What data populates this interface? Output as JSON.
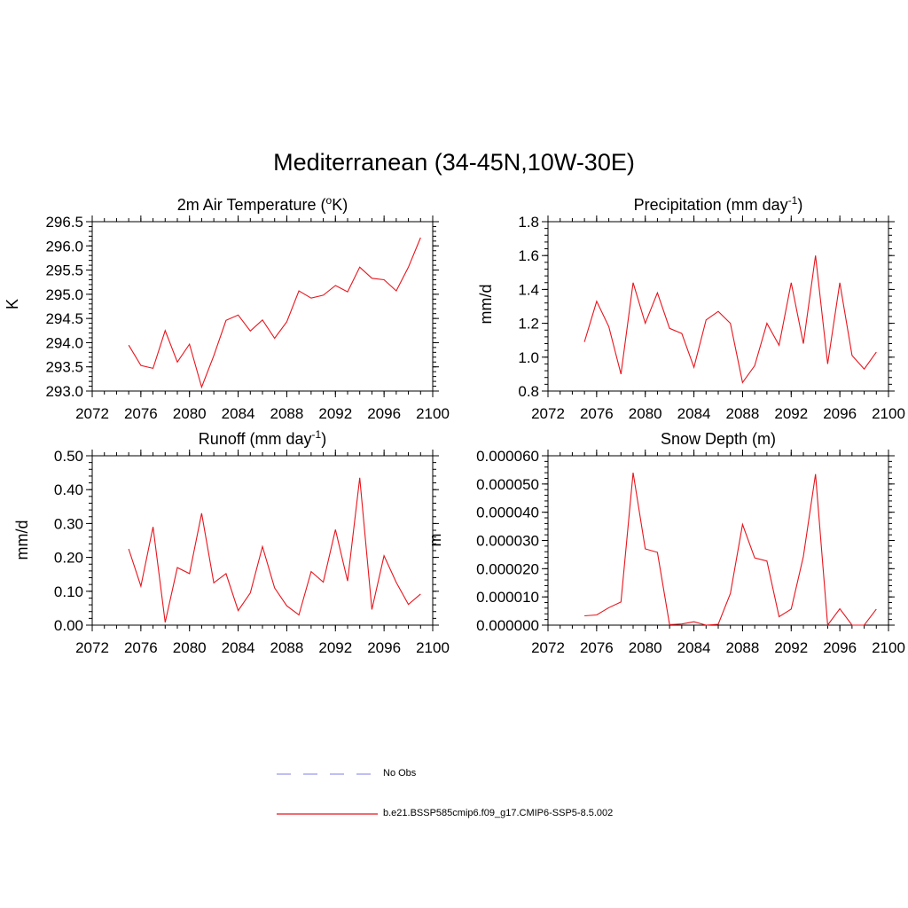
{
  "title": "Mediterranean (34-45N,10W-30E)",
  "colors": {
    "series": "#e8141c",
    "obs": "#9999ee",
    "axis": "#000000"
  },
  "legend": {
    "position": "bottom",
    "items": [
      {
        "label": "No Obs",
        "style": "dashed",
        "color": "#9999ee"
      },
      {
        "label": "b.e21.BSSP585cmip6.f09_g17.CMIP6-SSP5-8.5.002",
        "style": "solid",
        "color": "#e8141c"
      }
    ]
  },
  "chart_data": [
    {
      "type": "line",
      "title_main": "2m Air Temperature (",
      "title_sup_o": "o",
      "title_after": "K)",
      "ylabel": "K",
      "xlim": [
        2072,
        2100
      ],
      "ylim": [
        293.0,
        296.5
      ],
      "xticks": [
        "2072",
        "2076",
        "2080",
        "2084",
        "2088",
        "2092",
        "2096",
        "2100"
      ],
      "yticks": [
        "293.0",
        "293.5",
        "294.0",
        "294.5",
        "295.0",
        "295.5",
        "296.0",
        "296.5"
      ],
      "x": [
        2075,
        2076,
        2077,
        2078,
        2079,
        2080,
        2081,
        2082,
        2083,
        2084,
        2085,
        2086,
        2087,
        2088,
        2089,
        2090,
        2091,
        2092,
        2093,
        2094,
        2095,
        2096,
        2097,
        2098,
        2099
      ],
      "series": [
        {
          "values": [
            293.95,
            293.53,
            293.47,
            294.25,
            293.6,
            293.97,
            293.08,
            293.73,
            294.46,
            294.57,
            294.24,
            294.47,
            294.09,
            294.43,
            295.07,
            294.92,
            294.98,
            295.18,
            295.05,
            295.56,
            295.33,
            295.3,
            295.07,
            295.56,
            296.17
          ]
        }
      ]
    },
    {
      "type": "line",
      "title_main": "Precipitation (mm day",
      "title_sup": "-1",
      "title_after": ")",
      "ylabel": "mm/d",
      "xlim": [
        2072,
        2100
      ],
      "ylim": [
        0.8,
        1.8
      ],
      "xticks": [
        "2072",
        "2076",
        "2080",
        "2084",
        "2088",
        "2092",
        "2096",
        "2100"
      ],
      "yticks": [
        "0.8",
        "1.0",
        "1.2",
        "1.4",
        "1.6",
        "1.8"
      ],
      "x": [
        2075,
        2076,
        2077,
        2078,
        2079,
        2080,
        2081,
        2082,
        2083,
        2084,
        2085,
        2086,
        2087,
        2088,
        2089,
        2090,
        2091,
        2092,
        2093,
        2094,
        2095,
        2096,
        2097,
        2098,
        2099
      ],
      "series": [
        {
          "values": [
            1.09,
            1.33,
            1.18,
            0.9,
            1.44,
            1.2,
            1.38,
            1.17,
            1.14,
            0.94,
            1.22,
            1.27,
            1.2,
            0.85,
            0.95,
            1.2,
            1.07,
            1.44,
            1.08,
            1.6,
            0.96,
            1.44,
            1.01,
            0.93,
            1.03
          ]
        }
      ]
    },
    {
      "type": "line",
      "title_main": "Runoff (mm day",
      "title_sup": "-1",
      "title_after": ")",
      "ylabel": "mm/d",
      "xlim": [
        2072,
        2100
      ],
      "ylim": [
        0.0,
        0.5
      ],
      "xticks": [
        "2072",
        "2076",
        "2080",
        "2084",
        "2088",
        "2092",
        "2096",
        "2100"
      ],
      "yticks": [
        "0.00",
        "0.10",
        "0.20",
        "0.30",
        "0.40",
        "0.50"
      ],
      "x": [
        2075,
        2076,
        2077,
        2078,
        2079,
        2080,
        2081,
        2082,
        2083,
        2084,
        2085,
        2086,
        2087,
        2088,
        2089,
        2090,
        2091,
        2092,
        2093,
        2094,
        2095,
        2096,
        2097,
        2098,
        2099
      ],
      "series": [
        {
          "values": [
            0.225,
            0.115,
            0.29,
            0.008,
            0.17,
            0.152,
            0.33,
            0.125,
            0.152,
            0.043,
            0.095,
            0.232,
            0.11,
            0.057,
            0.03,
            0.158,
            0.127,
            0.282,
            0.13,
            0.435,
            0.046,
            0.205,
            0.126,
            0.061,
            0.092
          ]
        }
      ]
    },
    {
      "type": "line",
      "title_main": "Snow Depth (m)",
      "ylabel": "m",
      "xlim": [
        2072,
        2100
      ],
      "ylim": [
        0,
        6e-05
      ],
      "xticks": [
        "2072",
        "2076",
        "2080",
        "2084",
        "2088",
        "2092",
        "2096",
        "2100"
      ],
      "yticks": [
        "0.000000",
        "0.000010",
        "0.000020",
        "0.000030",
        "0.000040",
        "0.000050",
        "0.000060"
      ],
      "x": [
        2075,
        2076,
        2077,
        2078,
        2079,
        2080,
        2081,
        2082,
        2083,
        2084,
        2085,
        2086,
        2087,
        2088,
        2089,
        2090,
        2091,
        2092,
        2093,
        2094,
        2095,
        2096,
        2097,
        2098,
        2099
      ],
      "series": [
        {
          "values": [
            3.3e-06,
            3.6e-06,
            6.2e-06,
            8.2e-06,
            5.4e-05,
            2.7e-05,
            2.58e-05,
            2e-07,
            4e-07,
            1.2e-06,
            0.0,
            3e-07,
            1.12e-05,
            3.57e-05,
            2.38e-05,
            2.27e-05,
            3e-06,
            5.7e-06,
            2.43e-05,
            5.35e-05,
            0.0,
            5.8e-06,
            0.0,
            0.0,
            5.7e-06
          ]
        }
      ]
    }
  ]
}
